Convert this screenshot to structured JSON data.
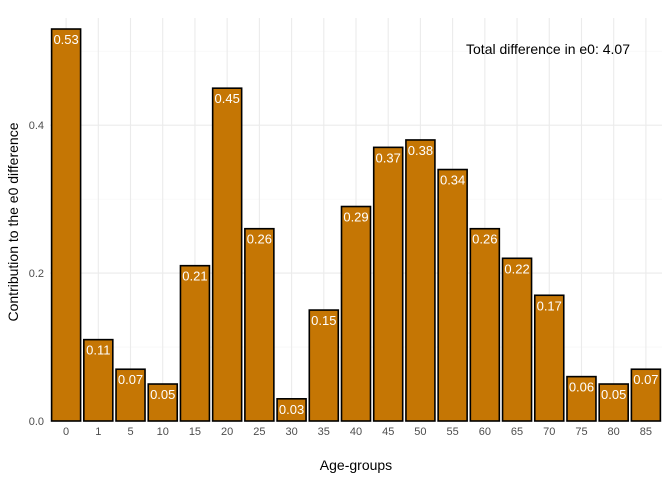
{
  "chart_data": {
    "type": "bar",
    "title": "",
    "xlabel": "Age-groups",
    "ylabel": "Contribution to the e0 difference",
    "categories": [
      "0",
      "1",
      "5",
      "10",
      "15",
      "20",
      "25",
      "30",
      "35",
      "40",
      "45",
      "50",
      "55",
      "60",
      "65",
      "70",
      "75",
      "80",
      "85"
    ],
    "values": [
      0.53,
      0.11,
      0.07,
      0.05,
      0.21,
      0.45,
      0.26,
      0.03,
      0.15,
      0.29,
      0.37,
      0.38,
      0.34,
      0.26,
      0.22,
      0.17,
      0.06,
      0.05,
      0.07
    ],
    "value_labels": [
      "0.53",
      "0.11",
      "0.07",
      "0.05",
      "0.21",
      "0.45",
      "0.26",
      "0.03",
      "0.15",
      "0.29",
      "0.37",
      "0.38",
      "0.34",
      "0.26",
      "0.22",
      "0.17",
      "0.06",
      "0.05",
      "0.07"
    ],
    "ylim": [
      0,
      0.5449
    ],
    "yticks": [
      0,
      0.2,
      0.4
    ],
    "ytick_labels": [
      "0.0",
      "0.2",
      "0.4"
    ],
    "grid": true,
    "annotation": "Total difference in e0: 4.07",
    "colors": {
      "bar_fill": "#C57604",
      "bar_stroke": "#000000",
      "label_text": "#FFFFFF"
    }
  }
}
